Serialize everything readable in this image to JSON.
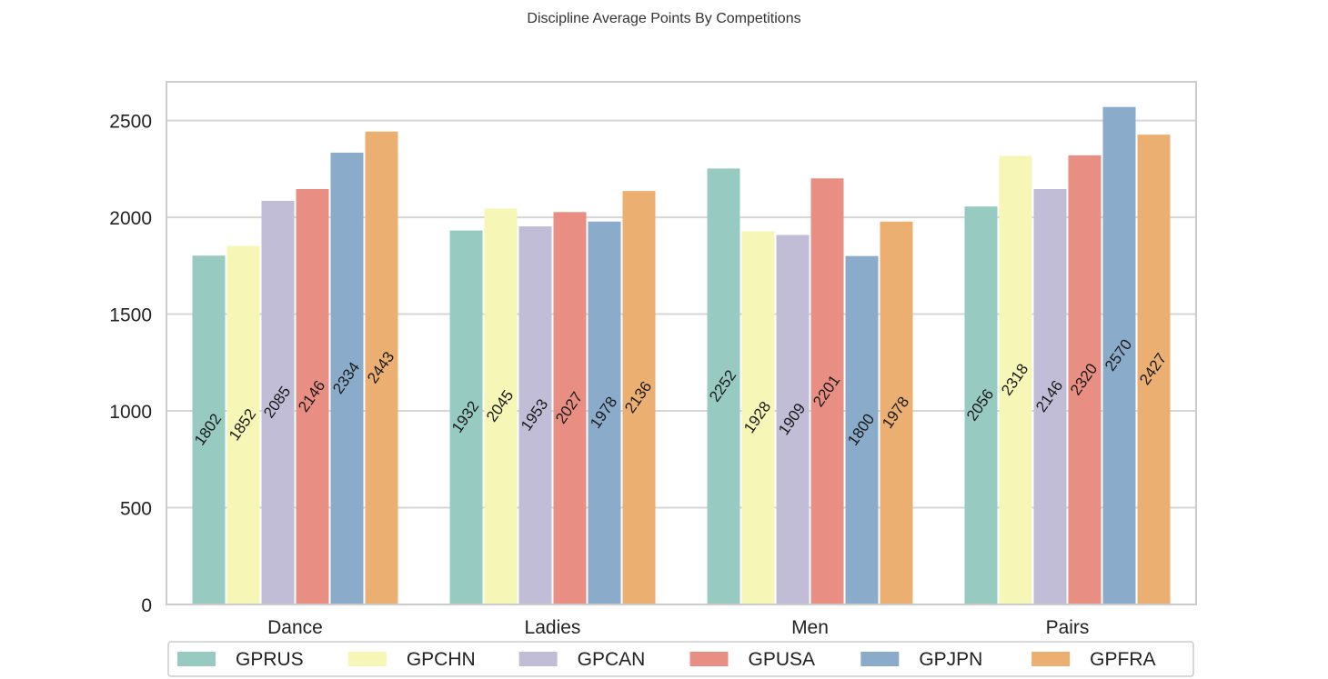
{
  "chart_data": {
    "type": "bar",
    "title": "Discipline Average Points By Competitions",
    "xlabel": "",
    "ylabel": "",
    "categories": [
      "Dance",
      "Ladies",
      "Men",
      "Pairs"
    ],
    "ylim": [
      0,
      2700
    ],
    "yticks": [
      0,
      500,
      1000,
      1500,
      2000,
      2500
    ],
    "grid": true,
    "legend_position": "bottom",
    "series": [
      {
        "name": "GPRUS",
        "color": "#97cbc2",
        "values": [
          1802,
          1932,
          2252,
          2056
        ]
      },
      {
        "name": "GPCHN",
        "color": "#f6f6b7",
        "values": [
          1852,
          2045,
          1928,
          2318
        ]
      },
      {
        "name": "GPCAN",
        "color": "#c1bdd7",
        "values": [
          2085,
          1953,
          1909,
          2146
        ]
      },
      {
        "name": "GPUSA",
        "color": "#e98e82",
        "values": [
          2146,
          2027,
          2201,
          2320
        ]
      },
      {
        "name": "GPJPN",
        "color": "#8aabca",
        "values": [
          2334,
          1978,
          1800,
          2570
        ]
      },
      {
        "name": "GPFRA",
        "color": "#eaaf71",
        "values": [
          2443,
          2136,
          1978,
          2427
        ]
      }
    ]
  }
}
